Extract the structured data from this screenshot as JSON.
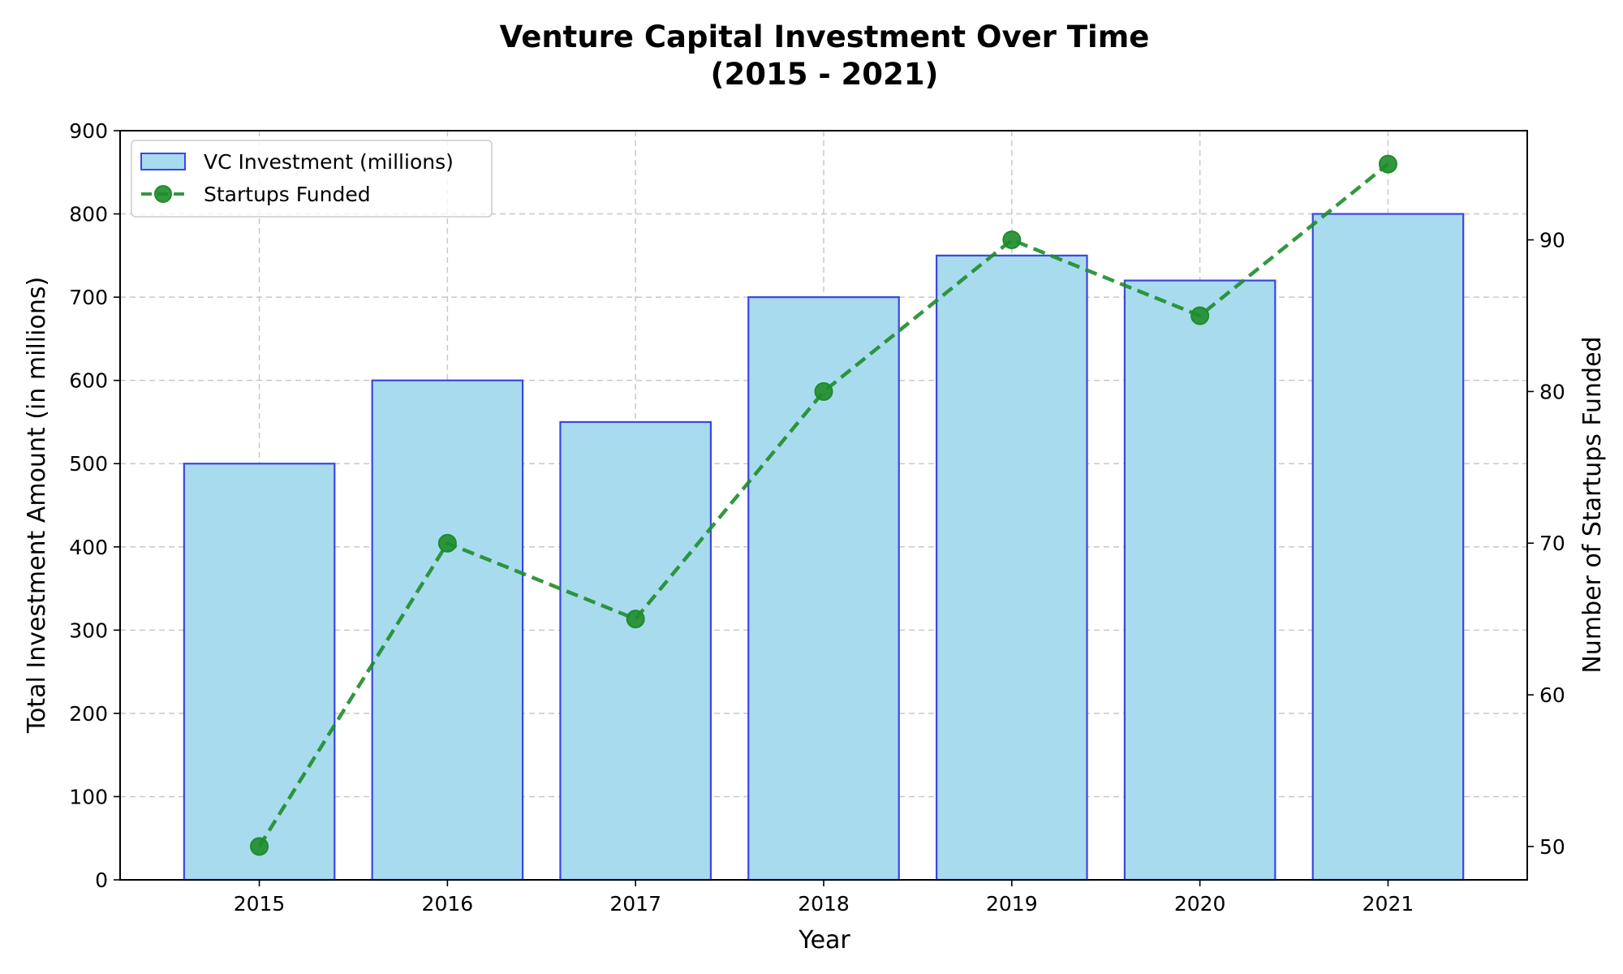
{
  "chart_data": {
    "type": "bar",
    "title_line1": "Venture Capital Investment Over Time",
    "title_line2": "(2015 - 2021)",
    "xlabel": "Year",
    "ylabel": "Total Investment Amount (in millions)",
    "y2label": "Number of Startups Funded",
    "categories": [
      "2015",
      "2016",
      "2017",
      "2018",
      "2019",
      "2020",
      "2021"
    ],
    "ylim": [
      0,
      900
    ],
    "y_ticks": [
      0,
      100,
      200,
      300,
      400,
      500,
      600,
      700,
      800,
      900
    ],
    "y2lim": [
      47.8,
      97.2
    ],
    "y2_ticks": [
      50,
      60,
      70,
      80,
      90
    ],
    "grid": true,
    "legend_position": "top-left",
    "series": [
      {
        "name": "VC Investment (millions)",
        "type": "bar",
        "axis": "left",
        "values": [
          500,
          600,
          550,
          700,
          750,
          720,
          800
        ],
        "fill_color": "#a8dbee",
        "edge_color": "#3b46e0"
      },
      {
        "name": "Startups Funded",
        "type": "line",
        "axis": "right",
        "values": [
          50,
          70,
          65,
          80,
          90,
          85,
          95
        ],
        "color": "#1e8c2a",
        "line_style": "dashed",
        "marker": "circle"
      }
    ]
  }
}
